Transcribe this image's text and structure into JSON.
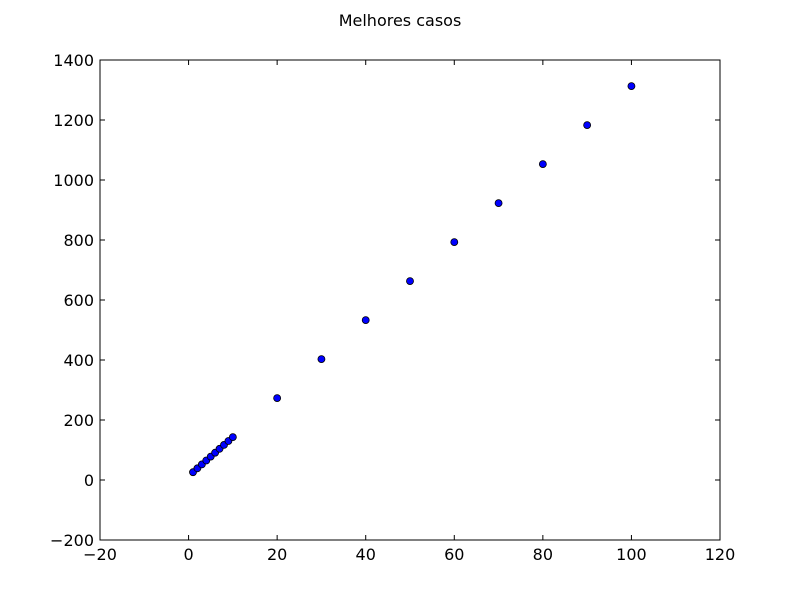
{
  "chart_data": {
    "type": "scatter",
    "title": "Melhores casos",
    "xlabel": "",
    "ylabel": "",
    "xlim": [
      -20,
      120
    ],
    "ylim": [
      -200,
      1400
    ],
    "xticks": [
      -20,
      0,
      20,
      40,
      60,
      80,
      100,
      120
    ],
    "yticks": [
      -200,
      0,
      200,
      400,
      600,
      800,
      1000,
      1200,
      1400
    ],
    "xtick_labels": [
      "−20",
      "0",
      "20",
      "40",
      "60",
      "80",
      "100",
      "120"
    ],
    "ytick_labels": [
      "−200",
      "0",
      "200",
      "400",
      "600",
      "800",
      "1000",
      "1200",
      "1400"
    ],
    "grid": false,
    "marker_color": "#0000ff",
    "series": [
      {
        "x": [
          1,
          2,
          3,
          4,
          5,
          6,
          7,
          8,
          9,
          10,
          20,
          30,
          40,
          50,
          60,
          70,
          80,
          90,
          100
        ],
        "y": [
          26,
          39,
          52,
          65,
          78,
          91,
          104,
          117,
          130,
          143,
          273,
          403,
          533,
          663,
          793,
          923,
          1053,
          1183,
          1313
        ]
      }
    ]
  }
}
